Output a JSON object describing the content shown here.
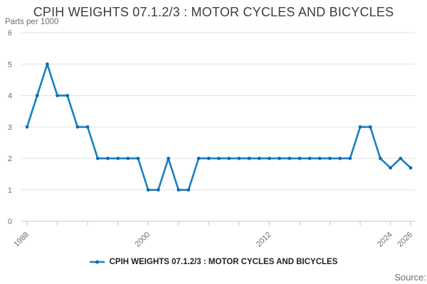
{
  "header": {
    "title": "CPIH WEIGHTS 07.1.2/3 : MOTOR CYCLES AND BICYCLES",
    "y_units": "Parts per 1000"
  },
  "legend": {
    "label": "CPIH WEIGHTS 07.1.2/3 : MOTOR CYCLES AND BICYCLES"
  },
  "source": {
    "label": "Source:"
  },
  "colors": {
    "line": "#1780c2",
    "marker": "#0f6cb0",
    "grid": "#e0e0e0",
    "axis": "#b9c7da",
    "text_muted": "#6e6e6e",
    "title": "#3d3d3d",
    "legend_text": "#1f1f1f"
  },
  "chart_data": {
    "type": "line",
    "title": "CPIH WEIGHTS 07.1.2/3 : MOTOR CYCLES AND BICYCLES",
    "ylabel": "Parts per 1000",
    "xlabel": "",
    "grid": true,
    "legend_position": "bottom",
    "ylim": [
      0,
      6
    ],
    "y_ticks": [
      0,
      1,
      2,
      3,
      4,
      5,
      6
    ],
    "x_range": [
      1988,
      2026
    ],
    "x_tick_years": [
      1988,
      1991,
      1994,
      1997,
      2000,
      2003,
      2006,
      2009,
      2012,
      2015,
      2018,
      2021,
      2024,
      2026
    ],
    "x_labeled_years": [
      1988,
      2000,
      2012,
      2024,
      2026
    ],
    "series": [
      {
        "name": "CPIH WEIGHTS 07.1.2/3 : MOTOR CYCLES AND BICYCLES",
        "x": [
          1988,
          1989,
          1990,
          1991,
          1992,
          1993,
          1994,
          1995,
          1996,
          1997,
          1998,
          1999,
          2000,
          2001,
          2002,
          2003,
          2004,
          2005,
          2006,
          2007,
          2008,
          2009,
          2010,
          2011,
          2012,
          2013,
          2014,
          2015,
          2016,
          2017,
          2018,
          2019,
          2020,
          2021,
          2022,
          2023,
          2024,
          2025,
          2026
        ],
        "values": [
          3,
          4,
          5,
          4,
          4,
          3,
          3,
          2,
          2,
          2,
          2,
          2,
          1,
          1,
          2,
          1,
          1,
          2,
          2,
          2,
          2,
          2,
          2,
          2,
          2,
          2,
          2,
          2,
          2,
          2,
          2,
          2,
          2,
          3,
          3,
          2,
          1.7,
          2,
          1.7
        ]
      }
    ]
  }
}
